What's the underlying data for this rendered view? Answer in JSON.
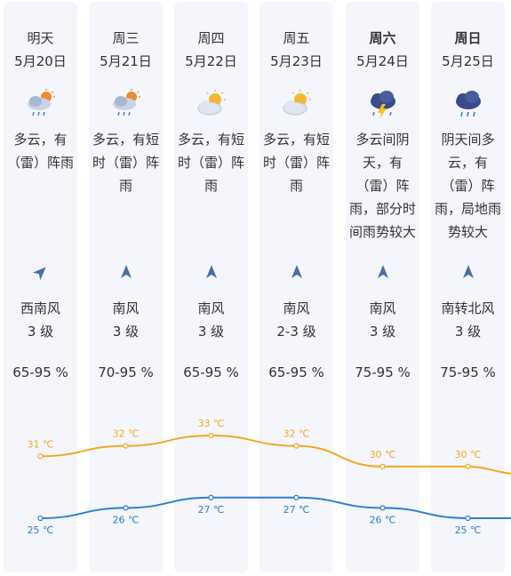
{
  "days": [
    {
      "weekday": "明天",
      "date": "5月20日",
      "bold": false,
      "icon": "cloudy-rain-sun-icon",
      "desc": "多云，有\n（雷）阵雨",
      "wind_dir": "西南风",
      "wind_level": "3 级",
      "humidity": "65-95 %",
      "high": "31 ℃",
      "low": "25 ℃",
      "wind_arrow_deg": 45
    },
    {
      "weekday": "周三",
      "date": "5月21日",
      "bold": false,
      "icon": "cloudy-rain-sun-icon",
      "desc": "多云，有短\n时（雷）阵\n雨",
      "wind_dir": "南风",
      "wind_level": "3 级",
      "humidity": "70-95 %",
      "high": "32 ℃",
      "low": "26 ℃",
      "wind_arrow_deg": 0
    },
    {
      "weekday": "周四",
      "date": "5月22日",
      "bold": false,
      "icon": "partly-cloudy-icon",
      "desc": "多云，有短\n时（雷）阵\n雨",
      "wind_dir": "南风",
      "wind_level": "3 级",
      "humidity": "65-95 %",
      "high": "33 ℃",
      "low": "27 ℃",
      "wind_arrow_deg": 0
    },
    {
      "weekday": "周五",
      "date": "5月23日",
      "bold": false,
      "icon": "partly-cloudy-icon",
      "desc": "多云，有短\n时（雷）阵\n雨",
      "wind_dir": "南风",
      "wind_level": "2-3 级",
      "humidity": "65-95 %",
      "high": "32 ℃",
      "low": "27 ℃",
      "wind_arrow_deg": 0
    },
    {
      "weekday": "周六",
      "date": "5月24日",
      "bold": true,
      "icon": "thunderstorm-icon",
      "desc": "多云间阴\n天，有\n（雷）阵\n雨，部分时\n间雨势较大",
      "wind_dir": "南风",
      "wind_level": "3 级",
      "humidity": "75-95 %",
      "high": "30 ℃",
      "low": "26 ℃",
      "wind_arrow_deg": 0
    },
    {
      "weekday": "周日",
      "date": "5月25日",
      "bold": true,
      "icon": "rain-cloud-icon",
      "desc": "阴天间多\n云，有\n（雷）阵\n雨，局地雨\n势较大",
      "wind_dir": "南转北风",
      "wind_level": "3 级",
      "humidity": "75-95 %",
      "high": "30 ℃",
      "low": "25 ℃",
      "wind_arrow_deg": 0
    }
  ],
  "chart_data": {
    "type": "line",
    "categories": [
      "5月20日",
      "5月21日",
      "5月22日",
      "5月23日",
      "5月24日",
      "5月25日"
    ],
    "series": [
      {
        "values": [
          31,
          32,
          33,
          32,
          30,
          30
        ],
        "color": "#f5a623"
      },
      {
        "values": [
          25,
          26,
          27,
          27,
          26,
          25
        ],
        "color": "#2b7fd4"
      }
    ]
  }
}
